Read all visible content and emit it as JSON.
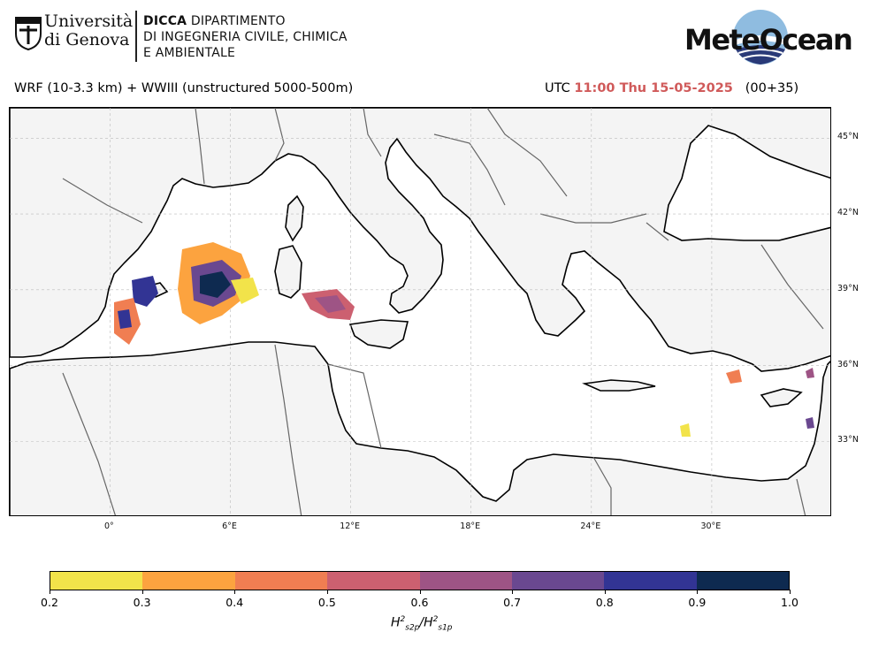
{
  "header": {
    "unige_name_line1": "Università",
    "unige_name_line2": "di Genova",
    "dicca_bold": "DICCA",
    "dicca_line1_rest": " DIPARTIMENTO",
    "dicca_line2": "DI INGEGNERIA CIVILE, CHIMICA",
    "dicca_line3": "E AMBIENTALE",
    "brand": "MeteOcean",
    "brand_colors": {
      "wave_dark": "#2a3a78",
      "wave_light": "#7fb0d8"
    }
  },
  "title_row": {
    "model": "WRF (10-3.3 km) + WWIII (unstructured 5000-500m)",
    "utc_prefix": "UTC",
    "time": "11:00 Thu 15-05-2025",
    "forecast_step": "(00+35)",
    "time_color": "#d05a5a"
  },
  "map": {
    "lat_labels": [
      "45°N",
      "42°N",
      "39°N",
      "36°N",
      "33°N"
    ],
    "lat_values": [
      45,
      42,
      39,
      36,
      33
    ],
    "lon_labels": [
      "0°",
      "6°E",
      "12°E",
      "18°E",
      "24°E",
      "30°E"
    ],
    "lon_values": [
      0,
      6,
      12,
      18,
      24,
      30
    ],
    "extent": {
      "lon_min": -5,
      "lon_max": 36,
      "lat_min": 30,
      "lat_max": 46.2
    },
    "gridlines": true,
    "land_color": "#f4f4f4",
    "sea_color": "#ffffff"
  },
  "colorbar": {
    "ticks": [
      "0.2",
      "0.3",
      "0.4",
      "0.5",
      "0.6",
      "0.7",
      "0.8",
      "0.9",
      "1.0"
    ],
    "colors": [
      "#f2e34a",
      "#fca33f",
      "#f07e52",
      "#cc6070",
      "#9e5485",
      "#6a4890",
      "#323494",
      "#0e2a50"
    ],
    "label_main": "H",
    "label_sup": "2",
    "label_sub1": "s2p",
    "label_sub2": "s1p"
  }
}
